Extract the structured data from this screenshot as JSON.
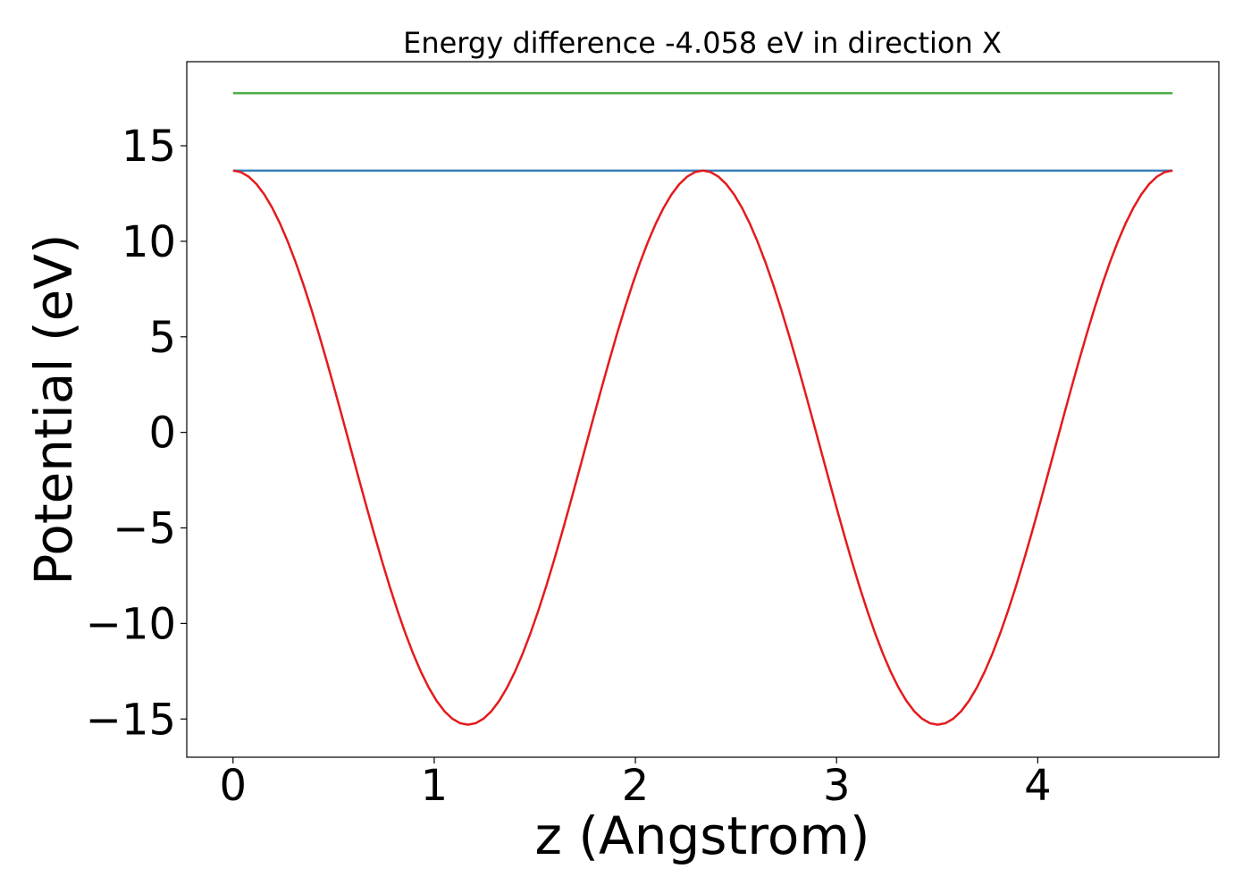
{
  "chart_data": {
    "type": "line",
    "title": "Energy difference -4.058 eV in direction X",
    "xlabel": "z (Angstrom)",
    "ylabel": "Potential (eV)",
    "xlim": [
      -0.23,
      4.9
    ],
    "ylim": [
      -17,
      19.4
    ],
    "xticks": [
      0,
      1,
      2,
      3,
      4
    ],
    "xtick_labels": [
      "0",
      "1",
      "2",
      "3",
      "4"
    ],
    "yticks": [
      -15,
      -10,
      -5,
      0,
      5,
      10,
      15
    ],
    "ytick_labels": [
      "−15",
      "−10",
      "−5",
      "0",
      "5",
      "10",
      "15"
    ],
    "grid": false,
    "legend": "none",
    "series": [
      {
        "color": "#e41a1c",
        "shape": "cosine",
        "z_start": 0.0,
        "z_end": 4.67,
        "max": 13.7,
        "min": -15.3,
        "maxima_z": [
          0.0,
          2.365,
          4.67
        ],
        "minima_z": [
          1.18,
          3.54
        ]
      },
      {
        "color": "#377eb8",
        "x": [
          0.0,
          4.67
        ],
        "y": [
          13.7,
          13.7
        ]
      },
      {
        "color": "#4daf4a",
        "x": [
          0.0,
          4.67
        ],
        "y": [
          17.75,
          17.75
        ]
      }
    ]
  }
}
